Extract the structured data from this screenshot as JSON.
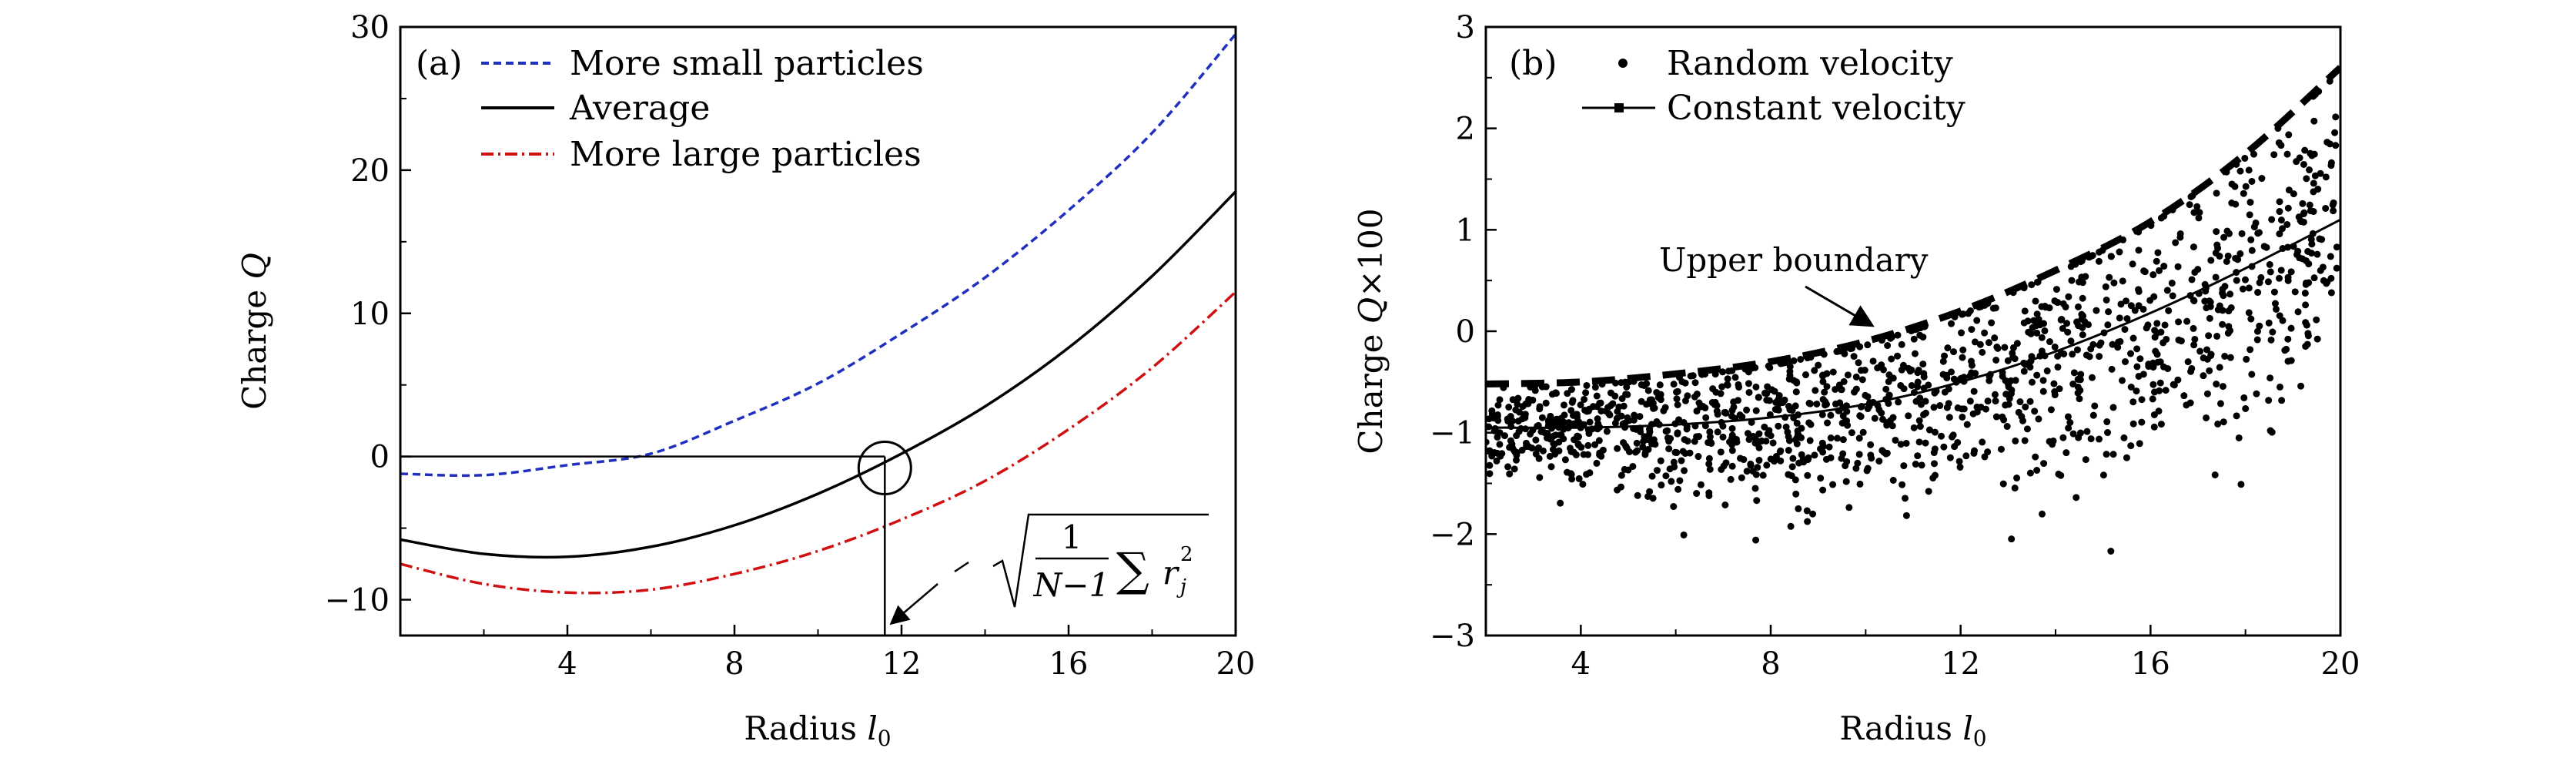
{
  "chart_data": [
    {
      "type": "line",
      "panel_label": "(a)",
      "xlabel": "Radius",
      "xlabel_var": "l",
      "xlabel_sub": "0",
      "ylabel": "Charge",
      "ylabel_var": "Q",
      "xlim": [
        0,
        20
      ],
      "ylim": [
        -12.5,
        30
      ],
      "x_ticks": [
        4,
        8,
        12,
        16,
        20
      ],
      "x_tick_labels": [
        "4",
        "8",
        "12",
        "16",
        "20"
      ],
      "y_ticks": [
        -10,
        0,
        10,
        20,
        30
      ],
      "y_tick_labels": [
        "−10",
        "0",
        "10",
        "20",
        "30"
      ],
      "legend_position": "top-left",
      "series": [
        {
          "name": "More small particles",
          "color": "#1f2fbf",
          "style": "dashed",
          "x": [
            0,
            2,
            4,
            6,
            8,
            10,
            12,
            14,
            16,
            18,
            20
          ],
          "y": [
            -1.2,
            -1.3,
            -0.6,
            0.2,
            2.5,
            5.1,
            8.6,
            12.5,
            17.2,
            22.6,
            29.5
          ]
        },
        {
          "name": "Average",
          "color": "#000000",
          "style": "solid",
          "x": [
            0,
            2,
            4,
            6,
            8,
            10,
            12,
            14,
            16,
            18,
            20
          ],
          "y": [
            -5.8,
            -6.8,
            -7.0,
            -6.3,
            -4.8,
            -2.6,
            0.2,
            3.5,
            7.6,
            12.6,
            18.5
          ]
        },
        {
          "name": "More large particles",
          "color": "#d01010",
          "style": "dashdot",
          "x": [
            0,
            2,
            4,
            6,
            8,
            10,
            12,
            14,
            16,
            18,
            20
          ],
          "y": [
            -7.5,
            -8.9,
            -9.5,
            -9.3,
            -8.2,
            -6.6,
            -4.4,
            -1.7,
            1.9,
            6.2,
            11.5
          ]
        }
      ],
      "annotation": {
        "marker_x": 11.6,
        "marker_y": -0.8,
        "formula_fraction_numerator": "1",
        "formula_fraction_denominator": "N−1",
        "formula_sum": "∑",
        "formula_term": "r",
        "formula_term_sup": "2",
        "formula_term_sub": "j"
      }
    },
    {
      "type": "scatter",
      "panel_label": "(b)",
      "xlabel": "Radius",
      "xlabel_var": "l",
      "xlabel_sub": "0",
      "ylabel": "Charge",
      "ylabel_var": "Q",
      "ylabel_suffix": "×100",
      "xlim": [
        2,
        20
      ],
      "ylim": [
        -3,
        3
      ],
      "x_ticks": [
        4,
        8,
        12,
        16,
        20
      ],
      "x_tick_labels": [
        "4",
        "8",
        "12",
        "16",
        "20"
      ],
      "y_ticks": [
        -3,
        -2,
        -1,
        0,
        1,
        2,
        3
      ],
      "y_tick_labels": [
        "−3",
        "−2",
        "−1",
        "0",
        "1",
        "2",
        "3"
      ],
      "legend_position": "top-left",
      "series": [
        {
          "name": "Random velocity",
          "marker": "dot",
          "color": "#000000",
          "point_count": 1400,
          "trend_x": [
            2,
            4,
            6,
            8,
            10,
            12,
            14,
            16,
            18,
            20
          ],
          "trend_y": [
            -0.95,
            -0.95,
            -0.92,
            -0.85,
            -0.72,
            -0.5,
            -0.2,
            0.18,
            0.62,
            1.1
          ]
        },
        {
          "name": "Constant velocity",
          "marker": "line",
          "color": "#000000",
          "x": [
            2,
            4,
            6,
            8,
            10,
            12,
            14,
            16,
            18,
            20
          ],
          "y": [
            -0.95,
            -0.95,
            -0.92,
            -0.85,
            -0.72,
            -0.5,
            -0.2,
            0.18,
            0.62,
            1.1
          ]
        },
        {
          "name": "Upper boundary",
          "marker": "thick-dashed",
          "color": "#000000",
          "x": [
            2,
            4,
            6,
            8,
            10,
            12,
            14,
            16,
            18,
            20
          ],
          "y": [
            -0.52,
            -0.5,
            -0.42,
            -0.3,
            -0.1,
            0.2,
            0.6,
            1.08,
            1.75,
            2.6
          ]
        }
      ],
      "annotation": {
        "text": "Upper boundary",
        "arrow_target_x": 10.2,
        "arrow_target_y": 0.02
      }
    }
  ]
}
